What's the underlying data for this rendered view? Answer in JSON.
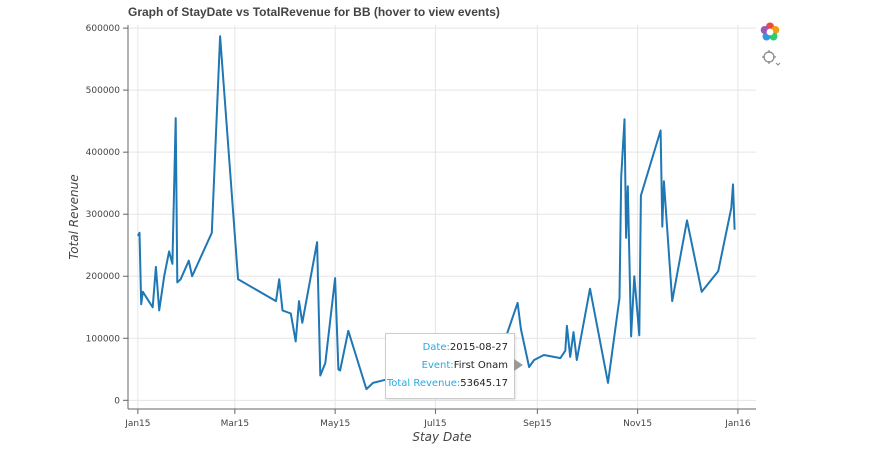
{
  "chart_data": {
    "type": "line",
    "title": "Graph of StayDate vs TotalRevenue for BB (hover to view events)",
    "xlabel": "Stay Date",
    "ylabel": "Total Revenue",
    "x_ticks": [
      "Jan15",
      "Mar15",
      "May15",
      "Jul15",
      "Sep15",
      "Nov15",
      "Jan16"
    ],
    "y_ticks": [
      "0",
      "100000",
      "200000",
      "300000",
      "400000",
      "500000",
      "600000"
    ],
    "xlim": [
      "2014-12-26",
      "2016-01-12"
    ],
    "ylim": [
      -14000,
      605000
    ],
    "grid": true,
    "line_color": "#1f77b4",
    "series": [
      {
        "points": [
          [
            "2015-01-01",
            265000
          ],
          [
            "2015-01-02",
            270000
          ],
          [
            "2015-01-03",
            155000
          ],
          [
            "2015-01-04",
            175000
          ],
          [
            "2015-01-10",
            150000
          ],
          [
            "2015-01-12",
            215000
          ],
          [
            "2015-01-14",
            145000
          ],
          [
            "2015-01-17",
            200000
          ],
          [
            "2015-01-20",
            240000
          ],
          [
            "2015-01-22",
            220000
          ],
          [
            "2015-01-24",
            455000
          ],
          [
            "2015-01-25",
            190000
          ],
          [
            "2015-01-27",
            195000
          ],
          [
            "2015-02-01",
            225000
          ],
          [
            "2015-02-03",
            200000
          ],
          [
            "2015-02-15",
            270000
          ],
          [
            "2015-02-20",
            587000
          ],
          [
            "2015-03-03",
            195000
          ],
          [
            "2015-03-26",
            160000
          ],
          [
            "2015-03-28",
            195000
          ],
          [
            "2015-03-30",
            145000
          ],
          [
            "2015-04-04",
            140000
          ],
          [
            "2015-04-07",
            95000
          ],
          [
            "2015-04-09",
            160000
          ],
          [
            "2015-04-11",
            125000
          ],
          [
            "2015-04-20",
            255000
          ],
          [
            "2015-04-22",
            40000
          ],
          [
            "2015-04-25",
            60000
          ],
          [
            "2015-05-01",
            197000
          ],
          [
            "2015-05-03",
            50000
          ],
          [
            "2015-05-04",
            48000
          ],
          [
            "2015-05-09",
            112000
          ],
          [
            "2015-05-20",
            18000
          ],
          [
            "2015-05-24",
            28000
          ],
          [
            "2015-08-10",
            80000
          ],
          [
            "2015-08-20",
            157000
          ],
          [
            "2015-08-22",
            115000
          ],
          [
            "2015-08-27",
            53645
          ],
          [
            "2015-08-30",
            65000
          ],
          [
            "2015-09-05",
            73000
          ],
          [
            "2015-09-15",
            68000
          ],
          [
            "2015-09-18",
            80000
          ],
          [
            "2015-09-19",
            120000
          ],
          [
            "2015-09-21",
            70000
          ],
          [
            "2015-09-23",
            110000
          ],
          [
            "2015-09-25",
            65000
          ],
          [
            "2015-10-03",
            180000
          ],
          [
            "2015-10-14",
            28000
          ],
          [
            "2015-10-21",
            165000
          ],
          [
            "2015-10-22",
            360000
          ],
          [
            "2015-10-24",
            453000
          ],
          [
            "2015-10-25",
            262000
          ],
          [
            "2015-10-26",
            345000
          ],
          [
            "2015-10-28",
            103000
          ],
          [
            "2015-10-30",
            200000
          ],
          [
            "2015-11-02",
            105000
          ],
          [
            "2015-11-03",
            330000
          ],
          [
            "2015-11-15",
            435000
          ],
          [
            "2015-11-16",
            280000
          ],
          [
            "2015-11-17",
            353000
          ],
          [
            "2015-11-22",
            160000
          ],
          [
            "2015-12-01",
            290000
          ],
          [
            "2015-12-10",
            175000
          ],
          [
            "2015-12-20",
            208000
          ],
          [
            "2015-12-28",
            310000
          ],
          [
            "2015-12-29",
            348000
          ],
          [
            "2015-12-30",
            275000
          ]
        ]
      }
    ]
  },
  "tooltip": {
    "date_label": "Date:",
    "date_value": "2015-08-27",
    "event_label": "Event:",
    "event_value": "First Onam",
    "revenue_label": "Total Revenue:",
    "revenue_value": "53645.17"
  },
  "toolbar": {
    "icons": [
      "bokeh-logo-icon",
      "hover-tool-icon"
    ]
  }
}
